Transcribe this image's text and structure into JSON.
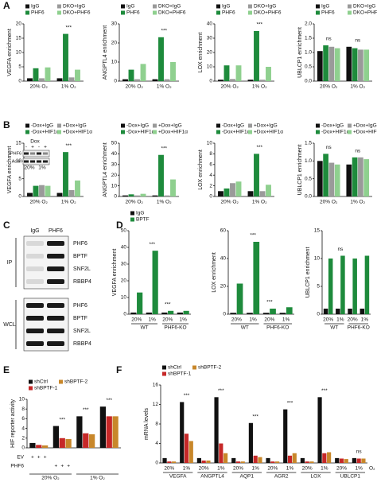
{
  "panel_labels": [
    "A",
    "B",
    "C",
    "D",
    "E",
    "F"
  ],
  "blot": {
    "columns": [
      "IgG",
      "PHF6"
    ],
    "sections": [
      {
        "label": "IP",
        "rows": [
          "PHF6",
          "BPTF",
          "SNF2L",
          "RBBP4"
        ]
      },
      {
        "label": "WCL",
        "rows": [
          "PHF6",
          "BPTF",
          "SNF2L",
          "RBBP4"
        ]
      }
    ]
  },
  "inset_blot": {
    "header": "Dox",
    "marks": [
      "-",
      "+",
      "-",
      "+"
    ],
    "rows": [
      "PHF6",
      "Actin"
    ],
    "columns": [
      "20%",
      "1%"
    ]
  },
  "chart_data": [
    {
      "type": "bar",
      "ylabel": "VEGFA enrichment",
      "categories": [
        "20% O₂",
        "1% O₂"
      ],
      "series": [
        {
          "name": "IgG",
          "color": "#111111",
          "values": [
            1,
            1
          ]
        },
        {
          "name": "PHF6",
          "color": "#1e8b3c",
          "values": [
            4.5,
            16.5
          ]
        },
        {
          "name": "DKO+IgG",
          "color": "#9a9a9a",
          "values": [
            1,
            1.3
          ]
        },
        {
          "name": "DKO+PHF6",
          "color": "#8fd08f",
          "values": [
            4.8,
            4
          ]
        }
      ],
      "ylim": [
        0,
        20
      ],
      "yticks": [
        0,
        5,
        10,
        15,
        20
      ],
      "annotations": [
        {
          "text": "***",
          "category": 1
        }
      ]
    },
    {
      "type": "bar",
      "ylabel": "ANGPTL4 enrichment",
      "categories": [
        "20% O₂",
        "1% O₂"
      ],
      "series": [
        {
          "name": "IgG",
          "color": "#111111",
          "values": [
            1,
            1
          ]
        },
        {
          "name": "PHF6",
          "color": "#1e8b3c",
          "values": [
            6,
            23
          ]
        },
        {
          "name": "DKO+IgG",
          "color": "#9a9a9a",
          "values": [
            1,
            1
          ]
        },
        {
          "name": "DKO+PHF6",
          "color": "#8fd08f",
          "values": [
            9,
            10
          ]
        }
      ],
      "ylim": [
        0,
        30
      ],
      "yticks": [
        0,
        10,
        20,
        30
      ],
      "annotations": [
        {
          "text": "***",
          "category": 1
        }
      ]
    },
    {
      "type": "bar",
      "ylabel": "LOX enrichment",
      "categories": [
        "20% O₂",
        "1% O₂"
      ],
      "series": [
        {
          "name": "IgG",
          "color": "#111111",
          "values": [
            1,
            1
          ]
        },
        {
          "name": "PHF6",
          "color": "#1e8b3c",
          "values": [
            11,
            35
          ]
        },
        {
          "name": "DKO+IgG",
          "color": "#9a9a9a",
          "values": [
            1.5,
            1
          ]
        },
        {
          "name": "DKO+PHF6",
          "color": "#8fd08f",
          "values": [
            11,
            10
          ]
        }
      ],
      "ylim": [
        0,
        40
      ],
      "yticks": [
        0,
        10,
        20,
        30,
        40
      ],
      "annotations": [
        {
          "text": "***",
          "category": 1
        }
      ]
    },
    {
      "type": "bar",
      "ylabel": "UBLCP1 enrichment",
      "categories": [
        "20% O₂",
        "1% O₂"
      ],
      "series": [
        {
          "name": "IgG",
          "color": "#111111",
          "values": [
            1.05,
            1.2
          ]
        },
        {
          "name": "PHF6",
          "color": "#1e8b3c",
          "values": [
            1.25,
            1.15
          ]
        },
        {
          "name": "DKO+IgG",
          "color": "#9a9a9a",
          "values": [
            1.2,
            1.1
          ]
        },
        {
          "name": "DKO+PHF6",
          "color": "#8fd08f",
          "values": [
            1.15,
            1.1
          ]
        }
      ],
      "ylim": [
        0,
        2
      ],
      "yticks": [
        {
          "value": 0,
          "label": "0.0"
        },
        {
          "value": 0.5,
          "label": "0.5"
        },
        {
          "value": 1,
          "label": "1.0"
        },
        {
          "value": 1.5,
          "label": "1.5"
        },
        {
          "value": 2,
          "label": "2.0"
        }
      ],
      "annotations": [
        {
          "text": "ns",
          "category": 0
        },
        {
          "text": "ns",
          "category": 1
        }
      ]
    },
    {
      "type": "bar",
      "ylabel": "VEGFA enrichment",
      "categories": [
        "20% O₂",
        "1% O₂"
      ],
      "series": [
        {
          "name": "-Dox+IgG",
          "color": "#111111",
          "values": [
            1,
            1
          ]
        },
        {
          "name": "-Dox+HIF1α",
          "color": "#1e8b3c",
          "values": [
            3,
            12.5
          ]
        },
        {
          "name": "+Dox+IgG",
          "color": "#9a9a9a",
          "values": [
            3.2,
            1.8
          ]
        },
        {
          "name": "+Dox+HIF1α",
          "color": "#8fd08f",
          "values": [
            3,
            4.5
          ]
        }
      ],
      "ylim": [
        0,
        15
      ],
      "yticks": [
        0,
        5,
        10,
        15
      ],
      "annotations": [
        {
          "text": "***",
          "category": 1
        }
      ]
    },
    {
      "type": "bar",
      "ylabel": "ANGPTL4 enrichment",
      "categories": [
        "20% O₂",
        "1% O₂"
      ],
      "series": [
        {
          "name": "-Dox+IgG",
          "color": "#111111",
          "values": [
            1,
            1
          ]
        },
        {
          "name": "-Dox+HIF1α",
          "color": "#1e8b3c",
          "values": [
            2,
            39
          ]
        },
        {
          "name": "+Dox+IgG",
          "color": "#9a9a9a",
          "values": [
            1,
            1
          ]
        },
        {
          "name": "+Dox+HIF1α",
          "color": "#8fd08f",
          "values": [
            2.5,
            16
          ]
        }
      ],
      "ylim": [
        0,
        50
      ],
      "yticks": [
        0,
        10,
        20,
        30,
        40,
        50
      ],
      "annotations": [
        {
          "text": "***",
          "category": 1
        }
      ]
    },
    {
      "type": "bar",
      "ylabel": "LOX enrichment",
      "categories": [
        "20% O₂",
        "1% O₂"
      ],
      "series": [
        {
          "name": "-Dox+IgG",
          "color": "#111111",
          "values": [
            1,
            1
          ]
        },
        {
          "name": "-Dox+HIF1α",
          "color": "#1e8b3c",
          "values": [
            1.5,
            8
          ]
        },
        {
          "name": "+Dox+IgG",
          "color": "#9a9a9a",
          "values": [
            2.5,
            1
          ]
        },
        {
          "name": "+Dox+HIF1α",
          "color": "#8fd08f",
          "values": [
            2.8,
            2.2
          ]
        }
      ],
      "ylim": [
        0,
        10
      ],
      "yticks": [
        0,
        2,
        4,
        6,
        8,
        10
      ],
      "annotations": [
        {
          "text": "***",
          "category": 1
        }
      ]
    },
    {
      "type": "bar",
      "ylabel": "UBLCP1 enrichment",
      "categories": [
        "20% O₂",
        "1% O₂"
      ],
      "series": [
        {
          "name": "-Dox+IgG",
          "color": "#111111",
          "values": [
            1,
            0.9
          ]
        },
        {
          "name": "-Dox+HIF1α",
          "color": "#1e8b3c",
          "values": [
            1.2,
            1.1
          ]
        },
        {
          "name": "+Dox+IgG",
          "color": "#9a9a9a",
          "values": [
            0.95,
            1.1
          ]
        },
        {
          "name": "+Dox+HIF1α",
          "color": "#8fd08f",
          "values": [
            0.9,
            1.05
          ]
        }
      ],
      "ylim": [
        0,
        1.5
      ],
      "yticks": [
        {
          "value": 0,
          "label": "0.0"
        },
        {
          "value": 0.5,
          "label": "0.5"
        },
        {
          "value": 1,
          "label": "1.0"
        },
        {
          "value": 1.5,
          "label": "1.5"
        }
      ],
      "annotations": [
        {
          "text": "ns",
          "category": 0
        },
        {
          "text": "ns",
          "category": 1
        }
      ]
    },
    {
      "type": "bar",
      "ylabel": "VEGFA enrichment",
      "categories": [
        "20%",
        "1%",
        "20%",
        "1%"
      ],
      "groups": [
        "WT",
        "PHF6-KO"
      ],
      "series": [
        {
          "name": "IgG",
          "color": "#111111",
          "values": [
            1,
            1,
            1,
            1
          ]
        },
        {
          "name": "BPTF",
          "color": "#1e8b3c",
          "values": [
            13,
            38,
            2,
            2
          ]
        }
      ],
      "ylim": [
        0,
        50
      ],
      "yticks": [
        0,
        10,
        20,
        30,
        40,
        50
      ],
      "annotations": [
        {
          "text": "***",
          "category": 1
        },
        {
          "text": "***",
          "category": 2
        }
      ]
    },
    {
      "type": "bar",
      "ylabel": "LOX enrichment",
      "categories": [
        "20%",
        "1%",
        "20%",
        "1%"
      ],
      "groups": [
        "WT",
        "PHF6-KO"
      ],
      "series": [
        {
          "color": "#111111",
          "values": [
            1,
            1,
            1,
            1
          ]
        },
        {
          "color": "#1e8b3c",
          "values": [
            22,
            52,
            4,
            5
          ]
        }
      ],
      "ylim": [
        0,
        60
      ],
      "yticks": [
        0,
        20,
        40,
        60
      ],
      "annotations": [
        {
          "text": "***",
          "category": 1
        },
        {
          "text": "***",
          "category": 2
        }
      ]
    },
    {
      "type": "bar",
      "ylabel": "UBLCP1 enrichment",
      "categories": [
        "20%",
        "1%",
        "20%",
        "1%"
      ],
      "groups": [
        "WT",
        "PHF6-KO"
      ],
      "series": [
        {
          "color": "#111111",
          "values": [
            1,
            1,
            1,
            1
          ]
        },
        {
          "color": "#1e8b3c",
          "values": [
            10,
            10.5,
            10,
            10.5
          ]
        }
      ],
      "ylim": [
        0,
        15
      ],
      "yticks": [
        0,
        5,
        10,
        15
      ],
      "annotations": [
        {
          "text": "ns",
          "category": 1
        }
      ]
    },
    {
      "type": "bar",
      "ylabel": "HIF reporter activity",
      "categories": [
        null,
        null,
        null,
        null
      ],
      "groups": [
        "20% O₂",
        "1% O₂"
      ],
      "series": [
        {
          "name": "shCtrl",
          "color": "#111111",
          "values": [
            1,
            4.5,
            6.5,
            8.5
          ]
        },
        {
          "name": "shBPTF-1",
          "color": "#c62828",
          "values": [
            0.6,
            2,
            3,
            6.5
          ]
        },
        {
          "name": "shBPTF-2",
          "color": "#c8872a",
          "values": [
            0.5,
            1.8,
            2.8,
            6.5
          ]
        }
      ],
      "conditions": [
        {
          "name": "EV",
          "marks": [
            "+",
            "+",
            "+"
          ]
        },
        {
          "name": "PHF6",
          "marks": [
            "+",
            "+",
            "+"
          ]
        }
      ],
      "ylim": [
        0,
        10
      ],
      "yticks": [
        0,
        2,
        4,
        6,
        8,
        10
      ],
      "annotations": [
        {
          "text": "***",
          "category": 1
        },
        {
          "text": "***",
          "category": 2
        },
        {
          "text": "***",
          "category": 3
        }
      ]
    },
    {
      "type": "bar",
      "ylabel": "mRNA levels",
      "categories": [
        "20%",
        "1%",
        "20%",
        "1%",
        "20%",
        "1%",
        "20%",
        "1%",
        "20%",
        "1%",
        "20%",
        "1%"
      ],
      "groups": [
        "VEGFA",
        "ANGPTL4",
        "AQP1",
        "AGR2",
        "LOX",
        "UBLCP1"
      ],
      "x_suffix": "O₂",
      "series": [
        {
          "name": "shCtrl",
          "color": "#111111",
          "values": [
            1,
            12.5,
            1,
            13.5,
            1,
            8.2,
            1,
            11,
            1,
            13.5,
            1,
            1
          ]
        },
        {
          "name": "shBPTF-1",
          "color": "#c62828",
          "values": [
            0.3,
            6,
            0.5,
            4,
            0.3,
            1.5,
            0.3,
            1.5,
            0.3,
            2,
            0.9,
            0.9
          ]
        },
        {
          "name": "shBPTF-2",
          "color": "#c8872a",
          "values": [
            0.3,
            4.5,
            0.5,
            2,
            0.3,
            1.2,
            0.3,
            2,
            0.3,
            2.2,
            0.8,
            0.9
          ]
        }
      ],
      "ylim": [
        0,
        16
      ],
      "yticks": [
        0,
        4,
        8,
        12,
        16
      ],
      "annotations": [
        {
          "text": "***",
          "category": 1
        },
        {
          "text": "***",
          "category": 3
        },
        {
          "text": "***",
          "category": 5
        },
        {
          "text": "***",
          "category": 7
        },
        {
          "text": "***",
          "category": 9
        },
        {
          "text": "ns",
          "category": 11
        }
      ]
    }
  ]
}
